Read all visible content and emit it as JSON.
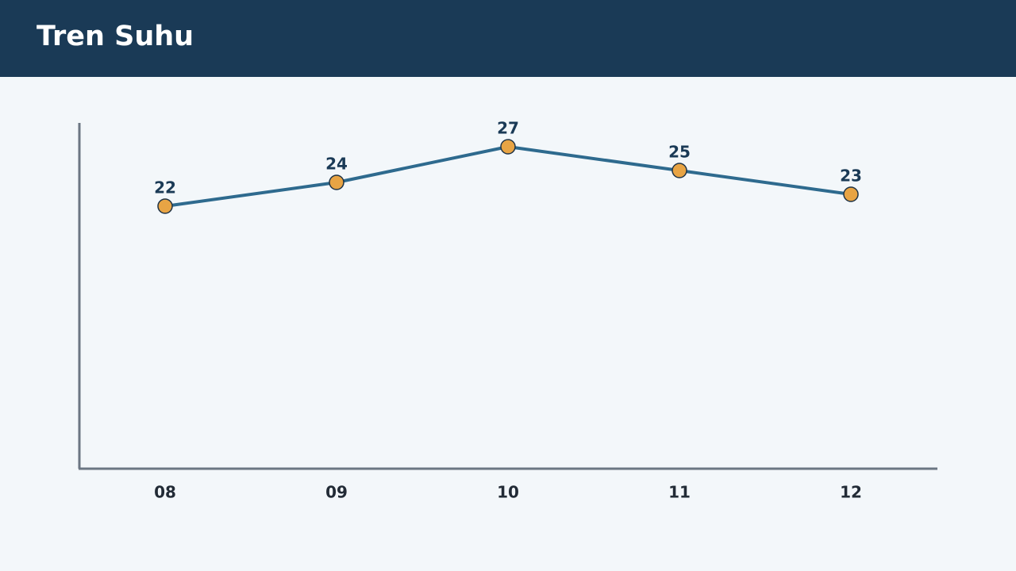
{
  "chart_data": {
    "type": "line",
    "title": "Tren Suhu",
    "categories": [
      "08",
      "09",
      "10",
      "11",
      "12"
    ],
    "values": [
      22,
      24,
      27,
      25,
      23
    ],
    "color": "#2e6a8e",
    "marker_color": "#e8a444",
    "ylim": [
      0,
      29
    ]
  }
}
